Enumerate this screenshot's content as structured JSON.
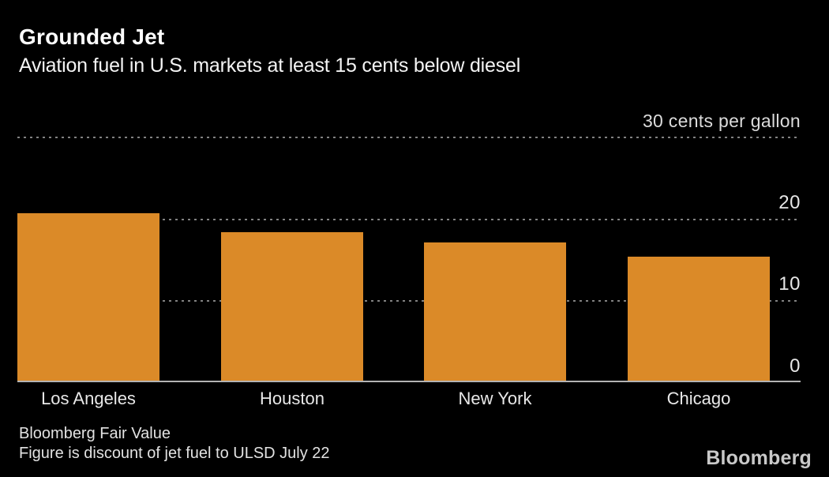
{
  "header": {
    "title": "Grounded Jet",
    "subtitle": "Aviation fuel in U.S. markets at least 15 cents below diesel"
  },
  "chart_data": {
    "type": "bar",
    "title": "Grounded Jet",
    "subtitle": "Aviation fuel in U.S. markets at least 15 cents below diesel",
    "categories": [
      "Los Angeles",
      "Houston",
      "New York",
      "Chicago"
    ],
    "values": [
      20.6,
      18.3,
      17.0,
      15.2
    ],
    "unit_label": "30 cents per gallon",
    "ylabel": "cents per gallon",
    "ylim": [
      0,
      30
    ],
    "yticks": [
      {
        "value": 30,
        "label": "30 cents per gallon"
      },
      {
        "value": 20,
        "label": "20"
      },
      {
        "value": 10,
        "label": "10"
      },
      {
        "value": 0,
        "label": "0"
      }
    ],
    "grid": "horizontal-dotted",
    "legend": "none",
    "bar_color": "#DB8A28",
    "gridline_color": "#828282",
    "baseline_color": "#B3B3B3",
    "background_color": "#000000"
  },
  "footer": {
    "source": "Bloomberg Fair Value",
    "note": "Figure is discount of jet fuel to ULSD July 22",
    "logo": "Bloomberg"
  }
}
